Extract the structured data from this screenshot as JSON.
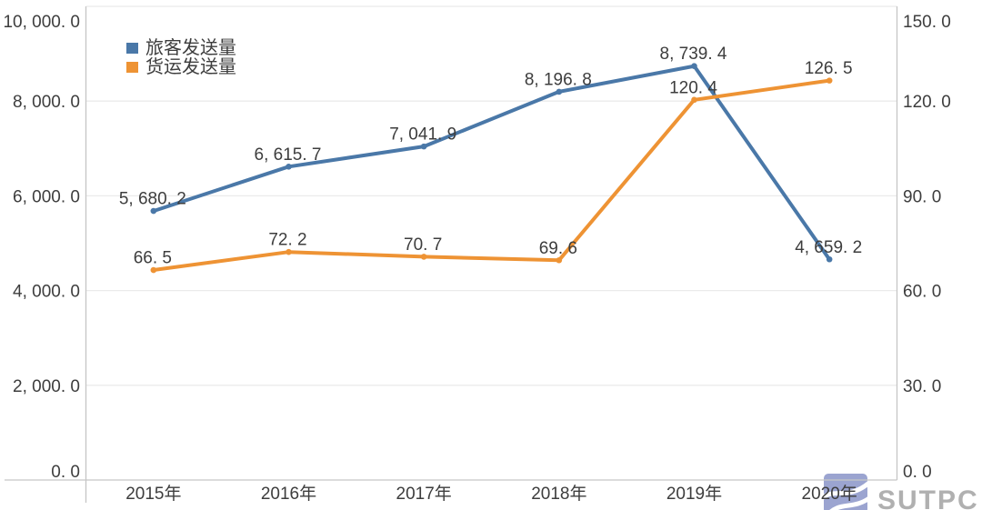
{
  "logo": {
    "text": "SUTPC",
    "icon": "sutpc-logo-icon",
    "icon_color": "#8e98ca",
    "text_color": "#a6a6a6"
  },
  "chart_data": {
    "type": "line",
    "title": "",
    "xlabel": "",
    "ylabel_left": "",
    "ylabel_right": "",
    "categories": [
      "2015年",
      "2016年",
      "2017年",
      "2018年",
      "2019年",
      "2020年"
    ],
    "series": [
      {
        "name": "旅客发送量",
        "axis": "left",
        "color": "#4a78a8",
        "values": [
          5680.2,
          6615.7,
          7041.9,
          8196.8,
          8739.4,
          4659.2
        ],
        "labels": [
          "5, 680. 2",
          "6, 615. 7",
          "7, 041. 9",
          "8, 196. 8",
          "8, 739. 4",
          "4, 659. 2"
        ]
      },
      {
        "name": "货运发送量",
        "axis": "right",
        "color": "#ee9334",
        "values": [
          66.5,
          72.2,
          70.7,
          69.6,
          120.4,
          126.5
        ],
        "labels": [
          "66. 5",
          "72. 2",
          "70. 7",
          "69. 6",
          "120. 4",
          "126. 5"
        ]
      }
    ],
    "left_axis": {
      "min": 0,
      "max": 10000,
      "tick_values": [
        0,
        2000,
        4000,
        6000,
        8000,
        10000
      ],
      "tick_labels": [
        "0. 0",
        "2, 000. 0",
        "4, 000. 0",
        "6, 000. 0",
        "8, 000. 0",
        "10, 000. 0"
      ]
    },
    "right_axis": {
      "min": 0,
      "max": 150,
      "tick_values": [
        0,
        30,
        60,
        90,
        120,
        150
      ],
      "tick_labels": [
        "0. 0",
        "30. 0",
        "60. 0",
        "90. 0",
        "120. 0",
        "150. 0"
      ]
    },
    "grid": true,
    "legend_position": "top-left-inside",
    "styles": {
      "background": "#ffffff",
      "grid_color": "#ebebeb",
      "axis_line_color": "#c6c6c6",
      "text_color": "#3d3d3d"
    }
  }
}
